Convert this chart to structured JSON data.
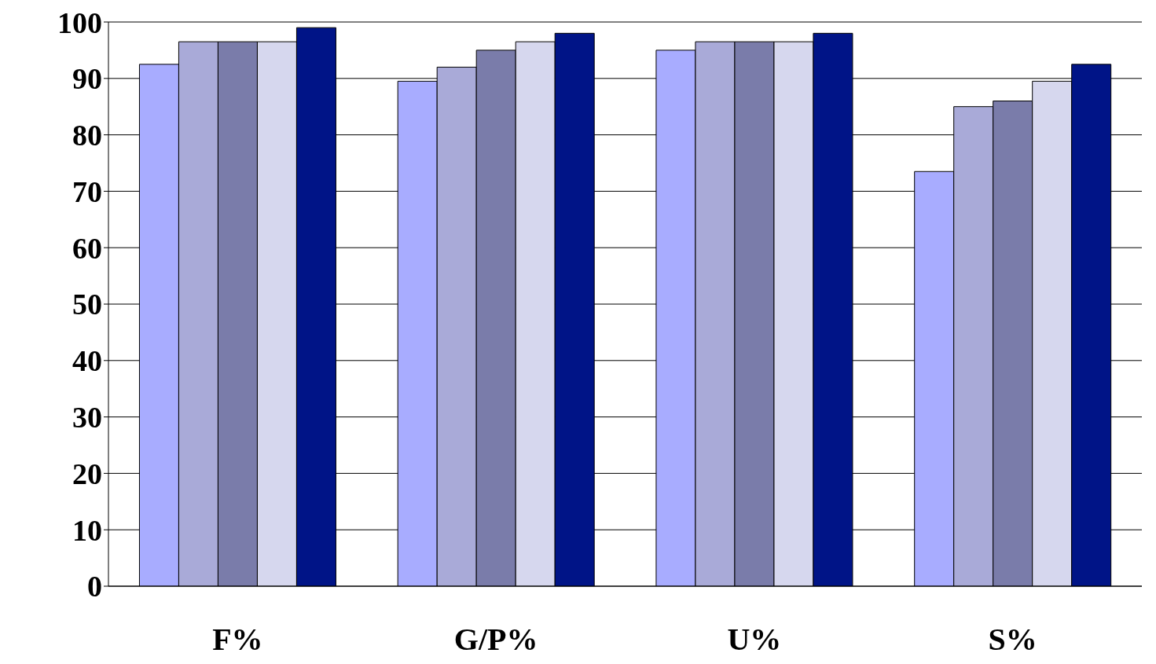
{
  "chart_data": {
    "type": "bar",
    "categories": [
      "F%",
      "G/P%",
      "U%",
      "S%"
    ],
    "series": [
      {
        "color": "#a8acff",
        "values": [
          92.5,
          89.5,
          95,
          73.5
        ]
      },
      {
        "color": "#a9aad8",
        "values": [
          96.5,
          92,
          96.5,
          85
        ]
      },
      {
        "color": "#7a7caa",
        "values": [
          96.5,
          95,
          96.5,
          86
        ]
      },
      {
        "color": "#d6d7ee",
        "values": [
          96.5,
          96.5,
          96.5,
          89.5
        ]
      },
      {
        "color": "#001487",
        "values": [
          99,
          98,
          98,
          92.5
        ]
      }
    ],
    "ylim": [
      0,
      100
    ],
    "yticks": [
      0,
      10,
      20,
      30,
      40,
      50,
      60,
      70,
      80,
      90,
      100
    ],
    "grid": "y",
    "legend": false
  }
}
